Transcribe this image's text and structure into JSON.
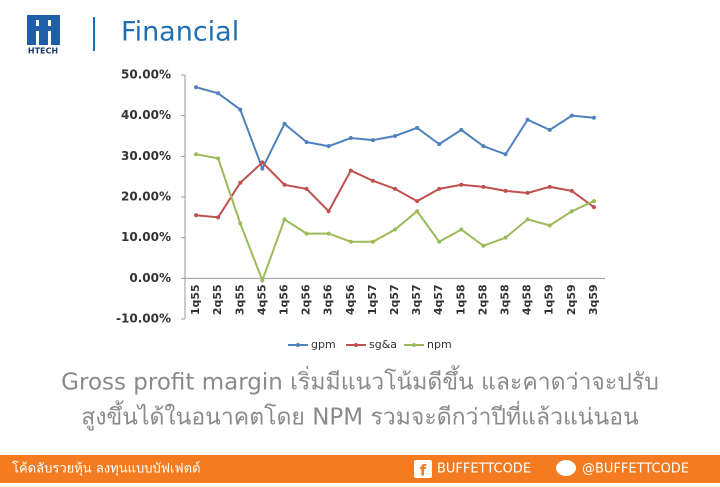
{
  "header": {
    "logo": "HTECH",
    "title": "Financial"
  },
  "chart_data": {
    "type": "line",
    "categories": [
      "1q55",
      "2q55",
      "3q55",
      "4q55",
      "1q56",
      "2q56",
      "3q56",
      "4q56",
      "1q57",
      "2q57",
      "3q57",
      "4q57",
      "1q58",
      "2q58",
      "3q58",
      "4q58",
      "1q59",
      "2q59",
      "3q59"
    ],
    "series": [
      {
        "name": "gpm",
        "color": "#4f81bd",
        "values": [
          47,
          45.5,
          41.5,
          27,
          38,
          33.5,
          32.5,
          34.5,
          34,
          35,
          37,
          33,
          36.5,
          32.5,
          30.5,
          39,
          36.5,
          40,
          39.5
        ]
      },
      {
        "name": "sg&a",
        "color": "#c0504d",
        "values": [
          15.5,
          15,
          23.5,
          28.5,
          23,
          22,
          16.5,
          26.5,
          24,
          22,
          19,
          22,
          23,
          22.5,
          21.5,
          21,
          22.5,
          21.5,
          17.5
        ]
      },
      {
        "name": "npm",
        "color": "#9bbb59",
        "values": [
          30.5,
          29.5,
          13.5,
          -0.5,
          14.5,
          11,
          11,
          9,
          9,
          12,
          16.5,
          9,
          12,
          8,
          10,
          14.5,
          13,
          16.5,
          19
        ]
      }
    ],
    "ylim": [
      -10,
      50
    ],
    "yticks": [
      {
        "value": -10,
        "label": "-10.00%"
      },
      {
        "value": 0,
        "label": "0.00%"
      },
      {
        "value": 10,
        "label": "10.00%"
      },
      {
        "value": 20,
        "label": "20.00%"
      },
      {
        "value": 30,
        "label": "30.00%"
      },
      {
        "value": 40,
        "label": "40.00%"
      },
      {
        "value": 50,
        "label": "50.00%"
      }
    ],
    "grid": false,
    "legend": "bottom"
  },
  "caption": [
    "Gross profit margin เริ่มมีแนวโน้มดีขึ้น และคาดว่าจะปรับ",
    "สูงขึ้นได้ในอนาคตโดย NPM รวมจะดีกว่าปีที่แล้วแน่นอน"
  ],
  "footer": {
    "slogan": "โค้ดลับรวยหุ้น ลงทุนแบบบัฟเฟตต์",
    "facebook": "BUFFETTCODE",
    "line": "@BUFFETTCODE"
  }
}
